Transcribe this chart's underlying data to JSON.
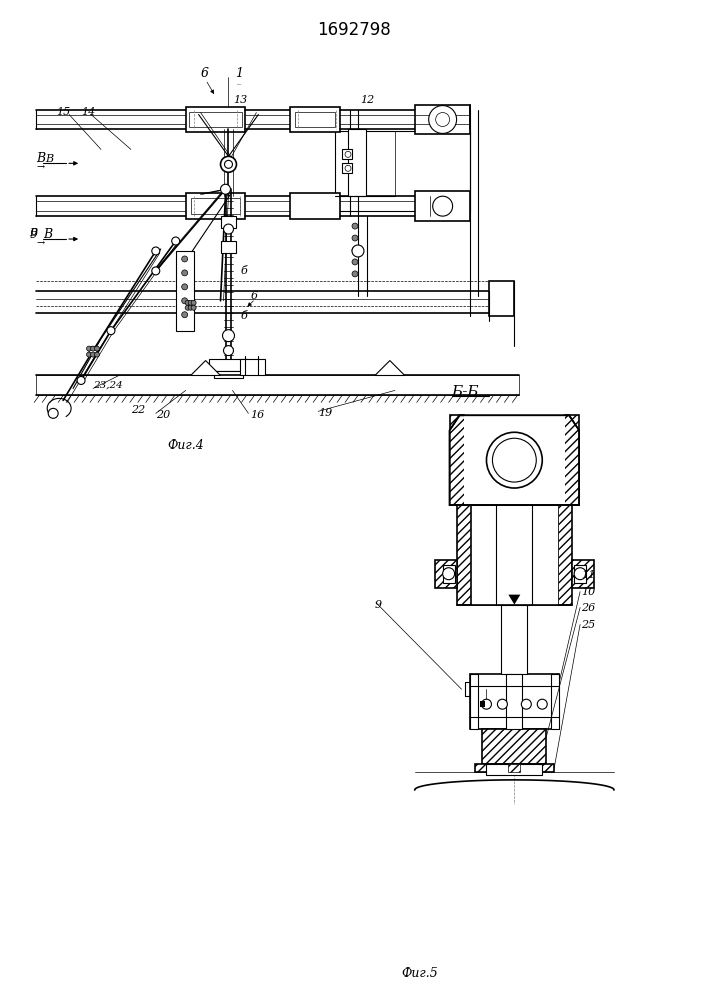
{
  "title": "1692798",
  "fig4_label": "Фиг.4",
  "fig5_label": "Фиг.5",
  "bb_label": "Б-Б",
  "bg_color": "#ffffff"
}
